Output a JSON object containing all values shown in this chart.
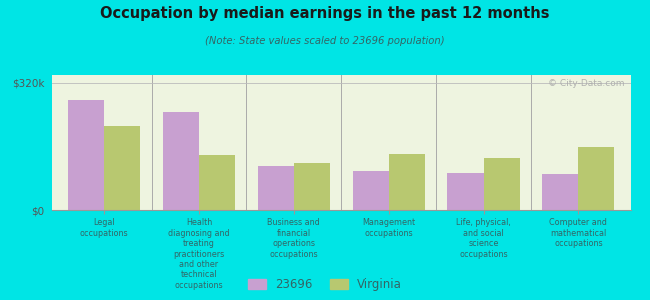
{
  "title": "Occupation by median earnings in the past 12 months",
  "subtitle": "(Note: State values scaled to 23696 population)",
  "background_color": "#00e5e5",
  "plot_bg_color": "#eef4e0",
  "categories": [
    "Legal\noccupations",
    "Health\ndiagnosing and\ntreating\npractitioners\nand other\ntechnical\noccupations",
    "Business and\nfinancial\noperations\noccupations",
    "Management\noccupations",
    "Life, physical,\nand social\nscience\noccupations",
    "Computer and\nmathematical\noccupations"
  ],
  "values_23696": [
    278000,
    248000,
    112000,
    98000,
    93000,
    90000
  ],
  "values_virginia": [
    212000,
    138000,
    118000,
    142000,
    132000,
    158000
  ],
  "color_23696": "#c8a0d0",
  "color_virginia": "#b8c870",
  "ymax": 340000,
  "yticks": [
    0,
    320000
  ],
  "ytick_labels": [
    "$0",
    "$320k"
  ],
  "legend_labels": [
    "23696",
    "Virginia"
  ],
  "bar_width": 0.38,
  "watermark": "© City-Data.com"
}
